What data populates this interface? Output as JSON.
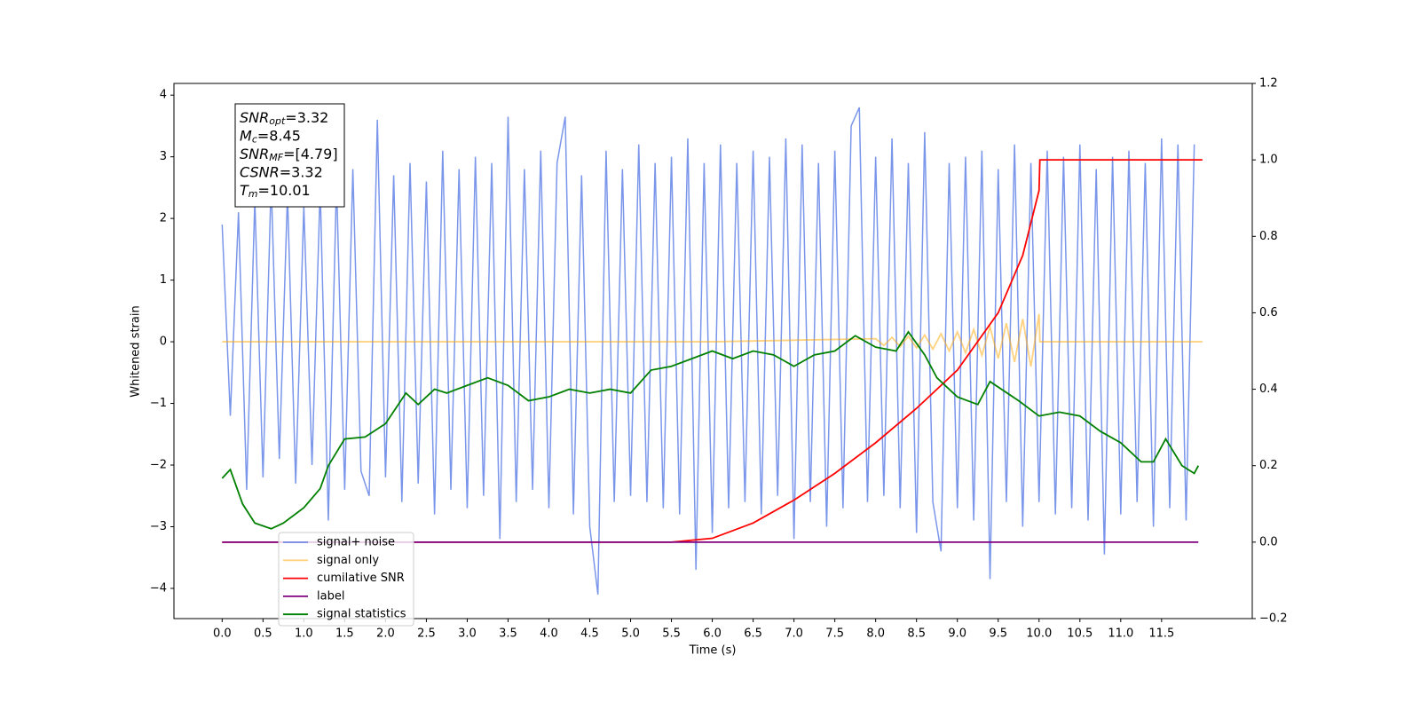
{
  "chart_data": {
    "type": "line",
    "xlabel": "Time (s)",
    "ylabel": "Whitened strain",
    "xlim": [
      -0.59,
      12.61
    ],
    "ylim": [
      -4.49,
      4.19
    ],
    "y2lim": [
      -0.2,
      1.2
    ],
    "xticks": [
      {
        "value": 0,
        "label": "0.0"
      },
      {
        "value": 0.5,
        "label": "0.5"
      },
      {
        "value": 1,
        "label": "1.0"
      },
      {
        "value": 1.5,
        "label": "1.5"
      },
      {
        "value": 2,
        "label": "2.0"
      },
      {
        "value": 2.5,
        "label": "2.5"
      },
      {
        "value": 3,
        "label": "3.0"
      },
      {
        "value": 3.5,
        "label": "3.5"
      },
      {
        "value": 4,
        "label": "4.0"
      },
      {
        "value": 4.5,
        "label": "4.5"
      },
      {
        "value": 5,
        "label": "5.0"
      },
      {
        "value": 5.5,
        "label": "5.5"
      },
      {
        "value": 6,
        "label": "6.0"
      },
      {
        "value": 6.5,
        "label": "6.5"
      },
      {
        "value": 7,
        "label": "7.0"
      },
      {
        "value": 7.5,
        "label": "7.5"
      },
      {
        "value": 8,
        "label": "8.0"
      },
      {
        "value": 8.5,
        "label": "8.5"
      },
      {
        "value": 9,
        "label": "9.0"
      },
      {
        "value": 9.5,
        "label": "9.5"
      },
      {
        "value": 10,
        "label": "10.0"
      },
      {
        "value": 10.5,
        "label": "10.5"
      },
      {
        "value": 11,
        "label": "11.0"
      },
      {
        "value": 11.5,
        "label": "11.5"
      }
    ],
    "yticks": [
      {
        "value": -4,
        "label": "−4"
      },
      {
        "value": -3,
        "label": "−3"
      },
      {
        "value": -2,
        "label": "−2"
      },
      {
        "value": -1,
        "label": "−1"
      },
      0,
      1,
      2,
      3,
      4
    ],
    "y2ticks": [
      {
        "value": -0.2,
        "label": "−0.2"
      },
      {
        "value": 0,
        "label": "0.0"
      },
      {
        "value": 0.2,
        "label": "0.2"
      },
      {
        "value": 0.4,
        "label": "0.4"
      },
      {
        "value": 0.6,
        "label": "0.6"
      },
      {
        "value": 0.8,
        "label": "0.8"
      },
      {
        "value": 1,
        "label": "1.0"
      },
      {
        "value": 1.2,
        "label": "1.2"
      }
    ],
    "annotation": [
      {
        "main": "SNR",
        "sub": "opt",
        "rest": "=3.32"
      },
      {
        "main": "M",
        "sub": "c",
        "rest": "=8.45"
      },
      {
        "main": "SNR",
        "sub": "MF",
        "rest": "=[4.79]"
      },
      {
        "main": "CSNR",
        "sub": "",
        "rest": "=3.32"
      },
      {
        "main": "T",
        "sub": "m",
        "rest": "=10.01"
      }
    ],
    "legend": "lower left",
    "series": [
      {
        "name": "signal+ noise",
        "color": "#4169e1",
        "alpha": 0.7,
        "axis": "y",
        "x": [
          0,
          0.1,
          0.2,
          0.3,
          0.4,
          0.5,
          0.6,
          0.7,
          0.8,
          0.9,
          1,
          1.1,
          1.2,
          1.3,
          1.4,
          1.5,
          1.6,
          1.7,
          1.8,
          1.9,
          2,
          2.1,
          2.2,
          2.3,
          2.4,
          2.5,
          2.6,
          2.7,
          2.8,
          2.9,
          3,
          3.1,
          3.2,
          3.3,
          3.4,
          3.5,
          3.6,
          3.7,
          3.8,
          3.9,
          4,
          4.1,
          4.2,
          4.3,
          4.4,
          4.5,
          4.6,
          4.7,
          4.8,
          4.9,
          5,
          5.1,
          5.2,
          5.3,
          5.4,
          5.5,
          5.6,
          5.7,
          5.8,
          5.9,
          6,
          6.1,
          6.2,
          6.3,
          6.4,
          6.5,
          6.6,
          6.7,
          6.8,
          6.9,
          7,
          7.1,
          7.2,
          7.3,
          7.4,
          7.5,
          7.6,
          7.7,
          7.8,
          7.9,
          8,
          8.1,
          8.2,
          8.3,
          8.4,
          8.5,
          8.6,
          8.7,
          8.8,
          8.9,
          9,
          9.1,
          9.2,
          9.3,
          9.4,
          9.5,
          9.6,
          9.7,
          9.8,
          9.9,
          10,
          10.1,
          10.2,
          10.3,
          10.4,
          10.5,
          10.6,
          10.7,
          10.8,
          10.9,
          11,
          11.1,
          11.2,
          11.3,
          11.4,
          11.5,
          11.6,
          11.7,
          11.8,
          11.9
        ],
        "values": [
          1.9,
          -1.2,
          2.1,
          -2.4,
          2.3,
          -2.2,
          2.6,
          -1.9,
          2.4,
          -2.3,
          2.2,
          -2.0,
          2.5,
          -2.9,
          2.6,
          -2.4,
          2.8,
          -2.1,
          -2.5,
          3.6,
          -2.2,
          2.7,
          -2.6,
          2.9,
          -2.3,
          2.6,
          -2.8,
          3.1,
          -2.4,
          2.8,
          -2.7,
          3.0,
          -2.5,
          2.9,
          -3.2,
          3.65,
          -2.6,
          2.8,
          -2.4,
          3.1,
          -2.7,
          2.9,
          3.65,
          -2.8,
          2.7,
          -3.0,
          -4.1,
          3.1,
          -2.6,
          2.8,
          -2.5,
          3.2,
          -2.6,
          2.9,
          -2.7,
          3.0,
          -2.8,
          3.3,
          -3.7,
          2.9,
          -3.1,
          3.2,
          -2.7,
          2.9,
          -2.6,
          3.1,
          -2.8,
          3.0,
          -2.5,
          3.3,
          -3.2,
          3.2,
          -2.6,
          2.9,
          -3.0,
          3.1,
          -2.7,
          3.5,
          3.8,
          -2.6,
          3.0,
          -2.5,
          3.3,
          -2.7,
          2.9,
          -3.1,
          3.4,
          -2.6,
          -3.4,
          2.9,
          -2.7,
          3.0,
          -2.9,
          3.1,
          -3.85,
          2.8,
          -2.6,
          3.2,
          -3.0,
          2.9,
          -2.6,
          3.1,
          -2.8,
          3.0,
          -2.7,
          3.2,
          -2.9,
          2.8,
          -3.45,
          3.0,
          -2.8,
          3.1,
          -2.6,
          2.9,
          -3.0,
          3.3,
          -2.7,
          3.2,
          -2.9,
          3.2
        ]
      },
      {
        "name": "signal only",
        "color": "#ffa500",
        "alpha": 0.5,
        "axis": "y",
        "x": [
          0,
          6,
          8,
          8.1,
          8.2,
          8.3,
          8.4,
          8.5,
          8.6,
          8.7,
          8.8,
          8.9,
          9,
          9.1,
          9.2,
          9.3,
          9.4,
          9.5,
          9.6,
          9.7,
          9.8,
          9.9,
          10,
          10.01,
          12
        ],
        "values": [
          0,
          0,
          0.05,
          -0.06,
          0.07,
          -0.08,
          0.09,
          -0.1,
          0.11,
          -0.12,
          0.13,
          -0.15,
          0.16,
          -0.18,
          0.2,
          -0.22,
          0.24,
          -0.27,
          0.3,
          -0.33,
          0.37,
          -0.4,
          0.45,
          0,
          0
        ]
      },
      {
        "name": "cumilative SNR",
        "color": "#ff0000",
        "alpha": 1,
        "axis": "y2",
        "x": [
          0,
          5.5,
          6,
          6.5,
          7,
          7.5,
          8,
          8.5,
          9,
          9.5,
          9.8,
          10,
          10.01,
          12
        ],
        "values": [
          0,
          0,
          0.01,
          0.05,
          0.11,
          0.18,
          0.26,
          0.35,
          0.45,
          0.6,
          0.75,
          0.92,
          1,
          1
        ]
      },
      {
        "name": "label",
        "color": "#800080",
        "alpha": 1,
        "axis": "y2",
        "x": [
          0,
          11.95
        ],
        "values": [
          0,
          0
        ]
      },
      {
        "name": "signal statistics",
        "color": "#008000",
        "alpha": 1,
        "axis": "y2",
        "x": [
          0,
          0.1,
          0.25,
          0.4,
          0.6,
          0.75,
          1,
          1.2,
          1.3,
          1.5,
          1.75,
          2,
          2.25,
          2.4,
          2.6,
          2.75,
          3,
          3.25,
          3.5,
          3.75,
          4,
          4.25,
          4.5,
          4.75,
          5,
          5.25,
          5.5,
          5.75,
          6,
          6.25,
          6.5,
          6.75,
          7,
          7.25,
          7.5,
          7.75,
          8,
          8.25,
          8.4,
          8.6,
          8.75,
          9,
          9.25,
          9.4,
          9.75,
          10,
          10.25,
          10.5,
          10.75,
          11,
          11.25,
          11.4,
          11.55,
          11.75,
          11.9,
          11.95
        ],
        "values": [
          0.167,
          0.19,
          0.1,
          0.05,
          0.035,
          0.05,
          0.09,
          0.14,
          0.2,
          0.27,
          0.275,
          0.31,
          0.39,
          0.36,
          0.4,
          0.39,
          0.41,
          0.43,
          0.41,
          0.37,
          0.38,
          0.4,
          0.39,
          0.4,
          0.39,
          0.45,
          0.46,
          0.48,
          0.5,
          0.48,
          0.5,
          0.49,
          0.46,
          0.49,
          0.5,
          0.54,
          0.51,
          0.5,
          0.55,
          0.49,
          0.43,
          0.38,
          0.36,
          0.42,
          0.37,
          0.33,
          0.34,
          0.33,
          0.29,
          0.26,
          0.21,
          0.21,
          0.27,
          0.2,
          0.18,
          0.2
        ]
      }
    ]
  }
}
